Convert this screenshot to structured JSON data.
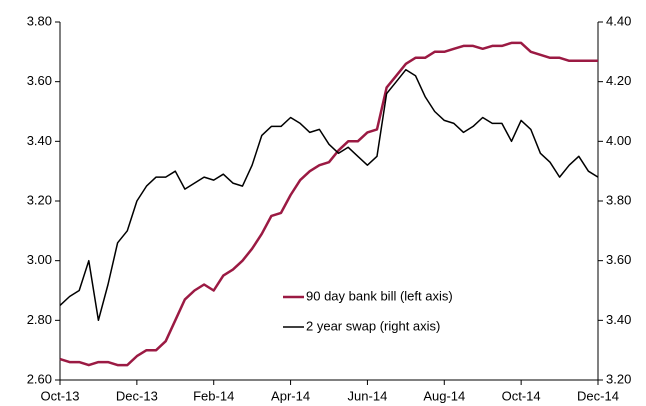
{
  "chart_data": {
    "type": "line",
    "categories": [
      "Oct-13",
      null,
      null,
      null,
      null,
      null,
      null,
      null,
      "Dec-13",
      null,
      null,
      null,
      null,
      null,
      null,
      null,
      "Feb-14",
      null,
      null,
      null,
      null,
      null,
      null,
      null,
      "Apr-14",
      null,
      null,
      null,
      null,
      null,
      null,
      null,
      "Jun-14",
      null,
      null,
      null,
      null,
      null,
      null,
      null,
      "Aug-14",
      null,
      null,
      null,
      null,
      null,
      null,
      null,
      "Oct-14",
      null,
      null,
      null,
      null,
      null,
      null,
      null,
      "Dec-14"
    ],
    "series": [
      {
        "name": "90 day bank bill (left axis)",
        "color": "#9b1a43",
        "axis": "y",
        "values": [
          2.67,
          2.66,
          2.66,
          2.65,
          2.66,
          2.66,
          2.65,
          2.65,
          2.68,
          2.7,
          2.7,
          2.73,
          2.8,
          2.87,
          2.9,
          2.92,
          2.9,
          2.95,
          2.97,
          3.0,
          3.04,
          3.09,
          3.15,
          3.16,
          3.22,
          3.27,
          3.3,
          3.32,
          3.33,
          3.37,
          3.4,
          3.4,
          3.43,
          3.44,
          3.58,
          3.62,
          3.66,
          3.68,
          3.68,
          3.7,
          3.7,
          3.71,
          3.72,
          3.72,
          3.71,
          3.72,
          3.72,
          3.73,
          3.73,
          3.7,
          3.69,
          3.68,
          3.68,
          3.67,
          3.67,
          3.67,
          3.67
        ]
      },
      {
        "name": "2 year swap (right axis)",
        "color": "#000000",
        "axis": "y2",
        "values": [
          3.45,
          3.48,
          3.5,
          3.6,
          3.4,
          3.52,
          3.66,
          3.7,
          3.8,
          3.85,
          3.88,
          3.88,
          3.9,
          3.84,
          3.86,
          3.88,
          3.87,
          3.89,
          3.86,
          3.85,
          3.92,
          4.02,
          4.05,
          4.05,
          4.08,
          4.06,
          4.03,
          4.04,
          3.99,
          3.96,
          3.98,
          3.95,
          3.92,
          3.95,
          4.16,
          4.2,
          4.24,
          4.22,
          4.15,
          4.1,
          4.07,
          4.06,
          4.03,
          4.05,
          4.08,
          4.06,
          4.06,
          4.0,
          4.07,
          4.04,
          3.96,
          3.93,
          3.88,
          3.92,
          3.95,
          3.9,
          3.88
        ]
      }
    ],
    "ylim": [
      2.6,
      3.8
    ],
    "yticks": [
      {
        "value": 2.6,
        "label": "2.60"
      },
      {
        "value": 2.8,
        "label": "2.80"
      },
      {
        "value": 3.0,
        "label": "3.00"
      },
      {
        "value": 3.2,
        "label": "3.20"
      },
      {
        "value": 3.4,
        "label": "3.40"
      },
      {
        "value": 3.6,
        "label": "3.60"
      },
      {
        "value": 3.8,
        "label": "3.80"
      }
    ],
    "y2lim": [
      3.2,
      4.4
    ],
    "y2ticks": [
      {
        "value": 3.2,
        "label": "3.20"
      },
      {
        "value": 3.4,
        "label": "3.40"
      },
      {
        "value": 3.6,
        "label": "3.60"
      },
      {
        "value": 3.8,
        "label": "3.80"
      },
      {
        "value": 4.0,
        "label": "4.00"
      },
      {
        "value": 4.2,
        "label": "4.20"
      },
      {
        "value": 4.4,
        "label": "4.40"
      }
    ],
    "grid": false
  }
}
